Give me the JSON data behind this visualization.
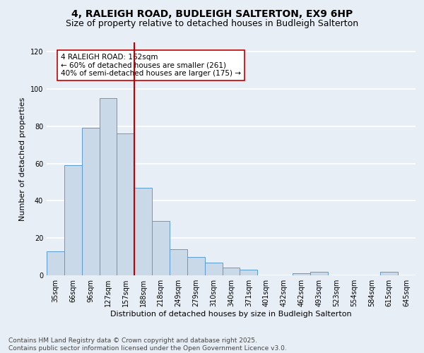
{
  "title": "4, RALEIGH ROAD, BUDLEIGH SALTERTON, EX9 6HP",
  "subtitle": "Size of property relative to detached houses in Budleigh Salterton",
  "xlabel": "Distribution of detached houses by size in Budleigh Salterton",
  "ylabel": "Number of detached properties",
  "footer_line1": "Contains HM Land Registry data © Crown copyright and database right 2025.",
  "footer_line2": "Contains public sector information licensed under the Open Government Licence v3.0.",
  "bar_labels": [
    "35sqm",
    "66sqm",
    "96sqm",
    "127sqm",
    "157sqm",
    "188sqm",
    "218sqm",
    "249sqm",
    "279sqm",
    "310sqm",
    "340sqm",
    "371sqm",
    "401sqm",
    "432sqm",
    "462sqm",
    "493sqm",
    "523sqm",
    "554sqm",
    "584sqm",
    "615sqm",
    "645sqm"
  ],
  "bar_values": [
    13,
    59,
    79,
    95,
    76,
    47,
    29,
    14,
    10,
    7,
    4,
    3,
    0,
    0,
    1,
    2,
    0,
    0,
    0,
    2,
    0
  ],
  "bar_color": "#c9d9e8",
  "bar_edge_color": "#5b9bd5",
  "vline_x": 4.5,
  "vline_color": "#c00000",
  "annotation_box_text": "4 RALEIGH ROAD: 162sqm\n← 60% of detached houses are smaller (261)\n40% of semi-detached houses are larger (175) →",
  "annotation_box_color": "#c00000",
  "annotation_box_facecolor": "white",
  "ylim": [
    0,
    125
  ],
  "yticks": [
    0,
    20,
    40,
    60,
    80,
    100,
    120
  ],
  "bg_color": "#e8eef5",
  "grid_color": "white",
  "title_fontsize": 10,
  "subtitle_fontsize": 9,
  "axis_label_fontsize": 8,
  "tick_fontsize": 7,
  "annotation_fontsize": 7.5,
  "footer_fontsize": 6.5
}
